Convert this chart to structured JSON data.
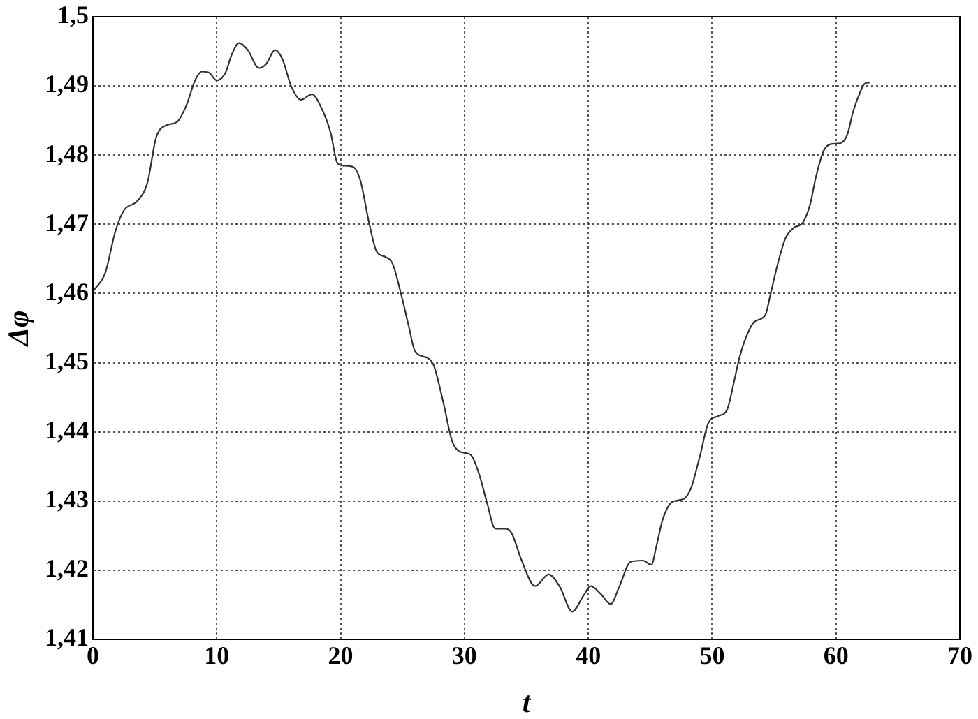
{
  "chart_data": {
    "type": "line",
    "xlabel": "t",
    "ylabel": "Δφ",
    "x": [
      0.1,
      1.0,
      1.8,
      2.5,
      3.6,
      4.4,
      5.1,
      5.9,
      6.8,
      7.5,
      8.3,
      8.8,
      9.4,
      10.0,
      10.7,
      11.2,
      11.8,
      12.5,
      13.4,
      14.0,
      14.7,
      15.3,
      16.0,
      16.8,
      17.7,
      18.4,
      19.2,
      19.7,
      20.1,
      21.0,
      21.6,
      22.3,
      22.9,
      23.6,
      24.2,
      24.9,
      25.5,
      26.0,
      27.0,
      27.5,
      28.3,
      29.0,
      29.7,
      30.5,
      31.2,
      31.8,
      32.5,
      33.3,
      33.8,
      34.6,
      35.7,
      36.8,
      37.7,
      38.7,
      39.6,
      40.2,
      41.0,
      41.8,
      42.5,
      43.4,
      44.4,
      45.1,
      45.5,
      46.0,
      46.8,
      47.7,
      48.3,
      49.0,
      49.7,
      50.5,
      51.2,
      51.8,
      52.2,
      52.7,
      53.4,
      54.3,
      54.7,
      55.3,
      55.9,
      56.6,
      57.3,
      57.9,
      58.4,
      59.0,
      59.6,
      60.3,
      60.9,
      61.4,
      62.0,
      62.3,
      62.7
    ],
    "values": [
      1.4605,
      1.463,
      1.4689,
      1.472,
      1.4734,
      1.476,
      1.4825,
      1.4843,
      1.4848,
      1.487,
      1.491,
      1.4921,
      1.4919,
      1.4908,
      1.4919,
      1.4945,
      1.4962,
      1.4952,
      1.4926,
      1.4932,
      1.4952,
      1.4939,
      1.49,
      1.488,
      1.4888,
      1.487,
      1.4832,
      1.479,
      1.4785,
      1.4783,
      1.4763,
      1.4702,
      1.4661,
      1.4653,
      1.4643,
      1.4598,
      1.4553,
      1.4517,
      1.4507,
      1.4497,
      1.4442,
      1.4387,
      1.4371,
      1.4367,
      1.4338,
      1.4299,
      1.426,
      1.426,
      1.4254,
      1.4215,
      1.4177,
      1.4194,
      1.4176,
      1.414,
      1.4163,
      1.4177,
      1.4166,
      1.4151,
      1.4176,
      1.4212,
      1.4214,
      1.4208,
      1.4235,
      1.4273,
      1.4299,
      1.4303,
      1.4319,
      1.4364,
      1.4413,
      1.4423,
      1.4432,
      1.4475,
      1.4507,
      1.4535,
      1.4559,
      1.4569,
      1.4598,
      1.4643,
      1.4679,
      1.4695,
      1.4702,
      1.4728,
      1.477,
      1.4806,
      1.4816,
      1.4817,
      1.4829,
      1.4864,
      1.4893,
      1.4903,
      1.4905
    ],
    "color": "#333333",
    "xlim": [
      0,
      70
    ],
    "xticks": [
      0,
      10,
      20,
      30,
      40,
      50,
      60,
      70
    ],
    "ylim": [
      1.41,
      1.5
    ],
    "yticks": [
      {
        "value": 1.41,
        "label": "1,41"
      },
      {
        "value": 1.42,
        "label": "1,42"
      },
      {
        "value": 1.43,
        "label": "1,43"
      },
      {
        "value": 1.44,
        "label": "1,44"
      },
      {
        "value": 1.45,
        "label": "1,45"
      },
      {
        "value": 1.46,
        "label": "1,46"
      },
      {
        "value": 1.47,
        "label": "1,47"
      },
      {
        "value": 1.48,
        "label": "1,48"
      },
      {
        "value": 1.49,
        "label": "1,49"
      },
      {
        "value": 1.5,
        "label": "1,5"
      }
    ],
    "grid": true,
    "marker": "none",
    "line_style": "solid"
  }
}
